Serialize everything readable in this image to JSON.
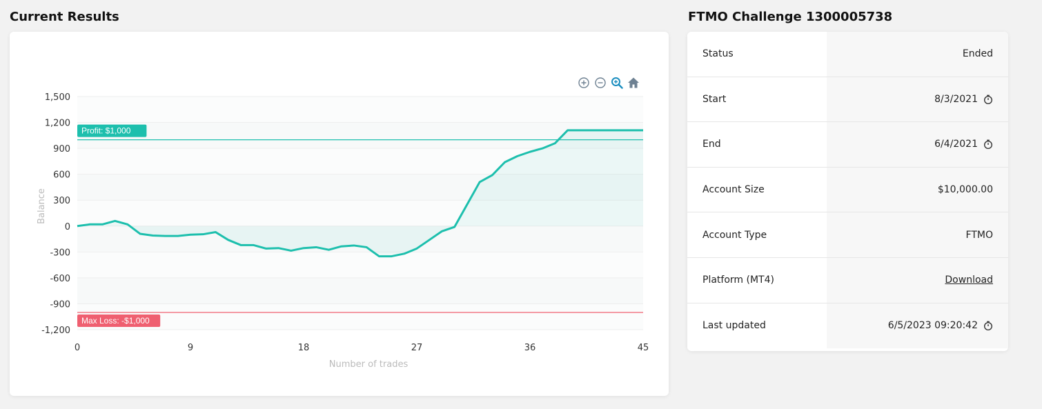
{
  "results": {
    "title": "Current Results"
  },
  "info": {
    "title": "FTMO Challenge 1300005738",
    "rows": [
      {
        "label": "Status",
        "value": "Ended",
        "icon": ""
      },
      {
        "label": "Start",
        "value": "8/3/2021",
        "icon": "timer-icon"
      },
      {
        "label": "End",
        "value": "6/4/2021",
        "icon": "timer-icon"
      },
      {
        "label": "Account Size",
        "value": "$10,000.00",
        "icon": ""
      },
      {
        "label": "Account Type",
        "value": "FTMO",
        "icon": ""
      },
      {
        "label": "Platform (MT4)",
        "value": "Download",
        "icon": "",
        "link": true
      },
      {
        "label": "Last updated",
        "value": "6/5/2023 09:20:42",
        "icon": "timer-icon"
      }
    ]
  },
  "toolbar": {
    "icons": [
      "zoom-in-icon",
      "zoom-out-icon",
      "zoom-selection-icon",
      "home-icon"
    ],
    "active_color": "#1a8dbf"
  },
  "chart_data": {
    "type": "area",
    "xlabel": "Number of trades",
    "ylabel": "Balance",
    "xlim": [
      0,
      45
    ],
    "ylim": [
      -1200,
      1500
    ],
    "xticks": [
      0,
      9,
      18,
      27,
      36,
      45
    ],
    "yticks": [
      1500,
      1200,
      900,
      600,
      300,
      0,
      -300,
      -600,
      -900,
      -1200
    ],
    "ytick_labels": [
      "1,500",
      "1,200",
      "900",
      "600",
      "300",
      "0",
      "-300",
      "-600",
      "-900",
      "-1,200"
    ],
    "series": [
      {
        "color": "#1dbfad",
        "x": [
          0,
          1,
          2,
          3,
          4,
          5,
          6,
          7,
          8,
          9,
          10,
          11,
          12,
          13,
          14,
          15,
          16,
          17,
          18,
          19,
          20,
          21,
          22,
          23,
          24,
          25,
          26,
          27,
          28,
          29,
          30,
          31,
          32,
          33,
          34,
          35,
          36,
          37,
          38,
          39,
          40,
          41,
          42,
          43,
          44,
          45
        ],
        "y": [
          0,
          20,
          20,
          60,
          20,
          -90,
          -110,
          -115,
          -115,
          -100,
          -95,
          -70,
          -160,
          -220,
          -220,
          -260,
          -255,
          -285,
          -255,
          -245,
          -275,
          -235,
          -225,
          -245,
          -350,
          -350,
          -320,
          -260,
          -160,
          -60,
          -10,
          250,
          510,
          590,
          740,
          810,
          860,
          900,
          960,
          1110,
          1110,
          1110,
          1110,
          1110,
          1110,
          1110
        ]
      }
    ],
    "annotations": [
      {
        "label": "Profit: $1,000",
        "y": 1000,
        "color": "#1dbfad"
      },
      {
        "label": "Max Loss: -$1,000",
        "y": -1000,
        "color": "#ef5f70"
      }
    ]
  }
}
